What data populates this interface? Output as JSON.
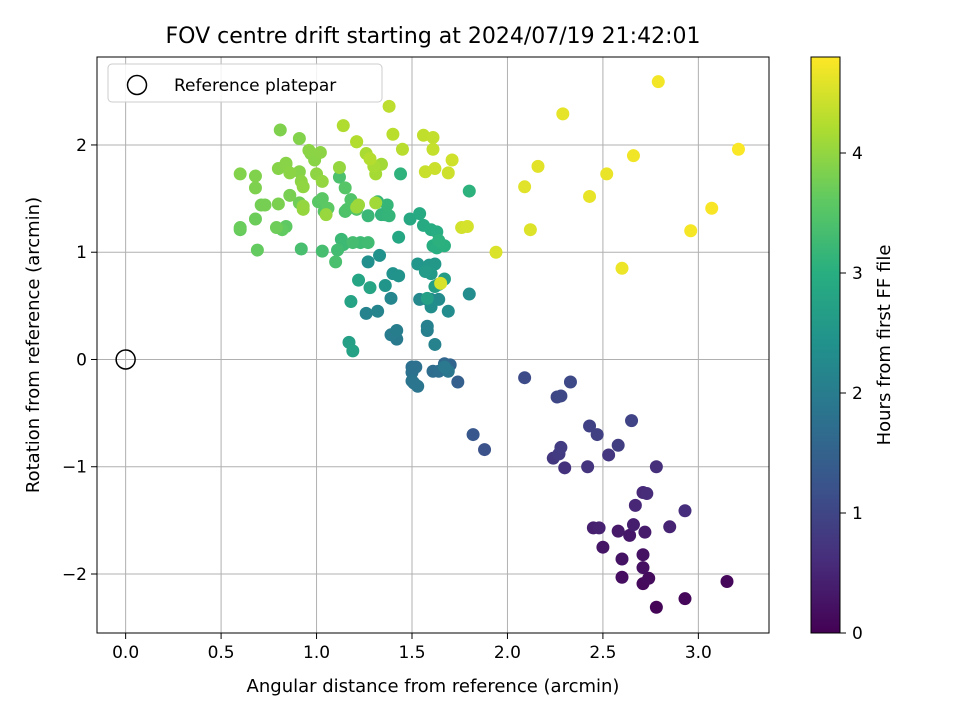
{
  "chart_data": {
    "type": "scatter",
    "title": "FOV centre drift starting at 2024/07/19 21:42:01",
    "xlabel": "Angular distance from reference (arcmin)",
    "ylabel": "Rotation from reference (arcmin)",
    "xlim": [
      -0.15,
      3.37
    ],
    "ylim": [
      -2.55,
      2.82
    ],
    "xticks": [
      0.0,
      0.5,
      1.0,
      1.5,
      2.0,
      2.5,
      3.0
    ],
    "xtick_labels": [
      "0.0",
      "0.5",
      "1.0",
      "1.5",
      "2.0",
      "2.5",
      "3.0"
    ],
    "yticks": [
      -2,
      -1,
      0,
      1,
      2
    ],
    "ytick_labels": [
      "−2",
      "−1",
      "0",
      "1",
      "2"
    ],
    "grid": true,
    "legend": {
      "placement": "upper-left",
      "entries": [
        "Reference platepar"
      ]
    },
    "reference_point": {
      "x": 0.0,
      "y": 0.0
    },
    "colorbar": {
      "label": "Hours from first FF file",
      "colormap": "viridis",
      "range": [
        0,
        4.8
      ],
      "ticks": [
        0,
        1,
        2,
        3,
        4
      ],
      "tick_labels": [
        "0",
        "1",
        "2",
        "3",
        "4"
      ]
    },
    "points": [
      [
        2.78,
        -2.31,
        0.05
      ],
      [
        2.93,
        -2.23,
        0.08
      ],
      [
        3.15,
        -2.07,
        0.1
      ],
      [
        2.71,
        -2.09,
        0.12
      ],
      [
        2.74,
        -2.04,
        0.15
      ],
      [
        2.6,
        -2.03,
        0.18
      ],
      [
        2.71,
        -1.94,
        0.2
      ],
      [
        2.71,
        -1.82,
        0.22
      ],
      [
        2.6,
        -1.86,
        0.25
      ],
      [
        2.5,
        -1.75,
        0.28
      ],
      [
        2.64,
        -1.64,
        0.3
      ],
      [
        2.58,
        -1.6,
        0.33
      ],
      [
        2.72,
        -1.61,
        0.36
      ],
      [
        2.66,
        -1.54,
        0.4
      ],
      [
        2.45,
        -1.57,
        0.42
      ],
      [
        2.48,
        -1.57,
        0.45
      ],
      [
        2.85,
        -1.56,
        0.48
      ],
      [
        2.67,
        -1.36,
        0.52
      ],
      [
        2.71,
        -1.24,
        0.55
      ],
      [
        2.73,
        -1.25,
        0.58
      ],
      [
        2.93,
        -1.41,
        0.62
      ],
      [
        2.78,
        -1.0,
        0.65
      ],
      [
        2.3,
        -1.01,
        0.68
      ],
      [
        2.42,
        -1.0,
        0.72
      ],
      [
        2.53,
        -0.89,
        0.75
      ],
      [
        2.24,
        -0.92,
        0.78
      ],
      [
        2.27,
        -0.88,
        0.82
      ],
      [
        2.28,
        -0.82,
        0.85
      ],
      [
        2.58,
        -0.8,
        0.88
      ],
      [
        2.47,
        -0.7,
        0.9
      ],
      [
        2.43,
        -0.62,
        0.93
      ],
      [
        2.65,
        -0.57,
        0.96
      ],
      [
        2.26,
        -0.35,
        1.0
      ],
      [
        2.28,
        -0.34,
        1.03
      ],
      [
        2.33,
        -0.21,
        1.06
      ],
      [
        2.09,
        -0.17,
        1.1
      ],
      [
        1.88,
        -0.84,
        1.2
      ],
      [
        1.82,
        -0.7,
        1.3
      ],
      [
        1.74,
        -0.21,
        1.45
      ],
      [
        1.7,
        -0.05,
        1.55
      ],
      [
        1.67,
        -0.04,
        1.6
      ],
      [
        1.68,
        -0.09,
        1.65
      ],
      [
        1.61,
        -0.11,
        1.7
      ],
      [
        1.64,
        -0.11,
        1.72
      ],
      [
        1.5,
        -0.07,
        1.75
      ],
      [
        1.52,
        -0.07,
        1.78
      ],
      [
        1.5,
        -0.12,
        1.8
      ],
      [
        1.5,
        -0.2,
        1.83
      ],
      [
        1.53,
        -0.25,
        1.85
      ],
      [
        1.51,
        -0.22,
        1.88
      ],
      [
        1.69,
        -0.11,
        1.9
      ],
      [
        1.67,
        -0.07,
        1.93
      ],
      [
        1.42,
        0.19,
        1.96
      ],
      [
        1.39,
        0.23,
        2.0
      ],
      [
        1.42,
        0.27,
        2.02
      ],
      [
        1.58,
        0.27,
        2.05
      ],
      [
        1.58,
        0.31,
        2.08
      ],
      [
        1.62,
        0.14,
        2.1
      ],
      [
        1.26,
        0.43,
        2.12
      ],
      [
        1.32,
        0.45,
        2.15
      ],
      [
        1.39,
        0.57,
        2.18
      ],
      [
        1.58,
        0.56,
        2.2
      ],
      [
        1.54,
        0.56,
        2.22
      ],
      [
        1.6,
        0.56,
        2.25
      ],
      [
        1.64,
        0.56,
        2.28
      ],
      [
        1.69,
        0.45,
        2.3
      ],
      [
        1.8,
        0.61,
        2.32
      ],
      [
        1.6,
        0.49,
        2.35
      ],
      [
        1.27,
        0.91,
        2.38
      ],
      [
        1.33,
        0.97,
        2.4
      ],
      [
        1.4,
        0.8,
        2.42
      ],
      [
        1.43,
        0.78,
        2.45
      ],
      [
        1.36,
        0.69,
        2.48
      ],
      [
        1.53,
        0.89,
        2.5
      ],
      [
        1.59,
        0.88,
        2.52
      ],
      [
        1.62,
        0.89,
        2.55
      ],
      [
        1.6,
        0.8,
        2.58
      ],
      [
        1.57,
        0.82,
        2.6
      ],
      [
        1.64,
        0.7,
        2.62
      ],
      [
        1.67,
        0.75,
        2.65
      ],
      [
        1.62,
        0.68,
        2.68
      ],
      [
        1.58,
        0.57,
        2.7
      ],
      [
        1.17,
        0.16,
        2.72
      ],
      [
        1.19,
        0.08,
        2.75
      ],
      [
        1.18,
        0.54,
        2.78
      ],
      [
        1.28,
        0.67,
        2.8
      ],
      [
        1.22,
        0.74,
        2.82
      ],
      [
        1.43,
        1.14,
        2.85
      ],
      [
        1.49,
        1.31,
        2.88
      ],
      [
        1.54,
        1.36,
        2.9
      ],
      [
        1.56,
        1.25,
        2.92
      ],
      [
        1.6,
        1.21,
        2.94
      ],
      [
        1.63,
        1.19,
        2.96
      ],
      [
        1.61,
        1.06,
        2.98
      ],
      [
        1.63,
        1.04,
        3.0
      ],
      [
        1.67,
        1.06,
        3.02
      ],
      [
        1.64,
        1.11,
        3.04
      ],
      [
        1.8,
        1.57,
        3.06
      ],
      [
        1.44,
        1.73,
        3.08
      ],
      [
        1.34,
        1.35,
        3.1
      ],
      [
        1.36,
        1.35,
        3.12
      ],
      [
        1.38,
        1.34,
        3.14
      ],
      [
        1.37,
        1.44,
        3.16
      ],
      [
        1.32,
        1.47,
        3.18
      ],
      [
        1.27,
        1.34,
        3.2
      ],
      [
        1.13,
        1.12,
        3.22
      ],
      [
        1.14,
        1.07,
        3.24
      ],
      [
        1.23,
        1.09,
        3.26
      ],
      [
        1.27,
        1.09,
        3.28
      ],
      [
        1.11,
        1.02,
        3.3
      ],
      [
        1.19,
        1.09,
        3.32
      ],
      [
        1.03,
        1.01,
        3.34
      ],
      [
        0.92,
        1.03,
        3.36
      ],
      [
        1.1,
        0.91,
        3.38
      ],
      [
        1.12,
        1.7,
        3.4
      ],
      [
        1.15,
        1.38,
        3.42
      ],
      [
        1.16,
        1.4,
        3.44
      ],
      [
        1.18,
        1.49,
        3.46
      ],
      [
        1.21,
        1.4,
        3.48
      ],
      [
        1.15,
        1.6,
        3.5
      ],
      [
        1.04,
        1.38,
        3.52
      ],
      [
        1.01,
        1.47,
        3.54
      ],
      [
        1.03,
        1.5,
        3.56
      ],
      [
        1.06,
        1.41,
        3.58
      ],
      [
        0.84,
        1.24,
        3.6
      ],
      [
        0.82,
        1.21,
        3.62
      ],
      [
        0.69,
        1.02,
        3.64
      ],
      [
        0.6,
        1.21,
        3.66
      ],
      [
        0.6,
        1.23,
        3.68
      ],
      [
        0.68,
        1.31,
        3.7
      ],
      [
        0.79,
        1.23,
        3.72
      ],
      [
        0.91,
        1.46,
        3.74
      ],
      [
        0.71,
        1.44,
        3.76
      ],
      [
        0.73,
        1.44,
        3.78
      ],
      [
        0.86,
        1.53,
        3.8
      ],
      [
        0.8,
        1.45,
        3.82
      ],
      [
        0.68,
        1.6,
        3.84
      ],
      [
        0.68,
        1.71,
        3.86
      ],
      [
        0.6,
        1.73,
        3.88
      ],
      [
        0.8,
        1.78,
        3.9
      ],
      [
        0.84,
        1.83,
        3.92
      ],
      [
        0.86,
        1.74,
        3.94
      ],
      [
        0.92,
        1.66,
        3.96
      ],
      [
        0.93,
        1.61,
        3.98
      ],
      [
        0.93,
        1.43,
        4.0
      ],
      [
        0.93,
        1.4,
        4.02
      ],
      [
        1.05,
        1.35,
        4.04
      ],
      [
        1.21,
        1.42,
        4.06
      ],
      [
        1.22,
        1.44,
        4.08
      ],
      [
        1.31,
        1.46,
        4.1
      ],
      [
        1.34,
        1.82,
        4.12
      ],
      [
        1.31,
        1.73,
        4.14
      ],
      [
        1.3,
        1.8,
        4.16
      ],
      [
        1.26,
        1.92,
        4.18
      ],
      [
        1.21,
        2.03,
        4.2
      ],
      [
        1.14,
        2.18,
        4.22
      ],
      [
        1.21,
        2.03,
        4.24
      ],
      [
        1.28,
        1.87,
        4.26
      ],
      [
        1.45,
        1.96,
        4.28
      ],
      [
        1.4,
        2.1,
        4.3
      ],
      [
        1.38,
        2.36,
        4.32
      ],
      [
        1.56,
        2.09,
        4.34
      ],
      [
        1.61,
        2.07,
        4.36
      ],
      [
        1.61,
        1.96,
        4.38
      ],
      [
        1.57,
        1.75,
        4.4
      ],
      [
        1.62,
        1.78,
        4.42
      ],
      [
        1.69,
        1.74,
        4.44
      ],
      [
        1.71,
        1.86,
        4.46
      ],
      [
        1.76,
        1.23,
        4.48
      ],
      [
        1.79,
        1.24,
        4.5
      ],
      [
        1.65,
        0.71,
        4.52
      ],
      [
        1.94,
        1.0,
        4.54
      ],
      [
        2.12,
        1.21,
        4.56
      ],
      [
        2.09,
        1.61,
        4.58
      ],
      [
        2.16,
        1.8,
        4.6
      ],
      [
        2.29,
        2.29,
        4.62
      ],
      [
        2.43,
        1.52,
        4.64
      ],
      [
        2.52,
        1.73,
        4.66
      ],
      [
        2.6,
        0.85,
        4.68
      ],
      [
        2.66,
        1.9,
        4.7
      ],
      [
        2.79,
        2.59,
        4.72
      ],
      [
        2.96,
        1.2,
        4.74
      ],
      [
        3.07,
        1.41,
        4.76
      ],
      [
        3.21,
        1.96,
        4.78
      ],
      [
        0.81,
        2.14,
        3.85
      ],
      [
        0.91,
        2.06,
        3.88
      ],
      [
        0.97,
        1.92,
        3.9
      ],
      [
        0.99,
        1.86,
        3.93
      ],
      [
        1.02,
        1.93,
        3.95
      ],
      [
        1.0,
        1.73,
        3.97
      ],
      [
        1.03,
        1.66,
        4.0
      ],
      [
        0.84,
        1.82,
        3.92
      ],
      [
        0.96,
        1.95,
        3.94
      ],
      [
        1.12,
        1.79,
        4.02
      ],
      [
        0.91,
        1.75,
        3.9
      ]
    ]
  }
}
